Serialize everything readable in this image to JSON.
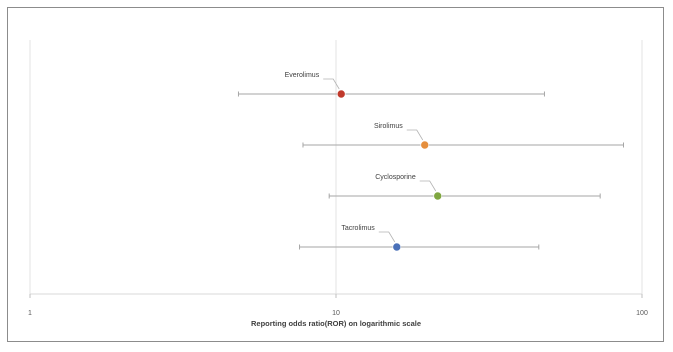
{
  "chart_data": {
    "type": "scatter",
    "title": "",
    "xlabel": "Reporting odds ratio(ROR) on logarithmic scale",
    "ylabel": "",
    "x_scale": "log",
    "xlim": [
      1,
      100
    ],
    "x_ticks": [
      "1",
      "10",
      "100"
    ],
    "grid": true,
    "legend": "none",
    "series": [
      {
        "name": "Everolimus",
        "color": "#c0392b",
        "ror": 10.4,
        "ci_low": 4.8,
        "ci_high": 48
      },
      {
        "name": "Sirolimus",
        "color": "#e58e3c",
        "ror": 19.5,
        "ci_low": 7.8,
        "ci_high": 87
      },
      {
        "name": "Cyclosporine",
        "color": "#7fa640",
        "ror": 21.5,
        "ci_low": 9.5,
        "ci_high": 73
      },
      {
        "name": "Tacrolimus",
        "color": "#4a70b8",
        "ror": 15.8,
        "ci_low": 7.6,
        "ci_high": 46
      }
    ],
    "error_bar_color": "#a6a6a6",
    "gridline_color": "#e3e3e3"
  }
}
